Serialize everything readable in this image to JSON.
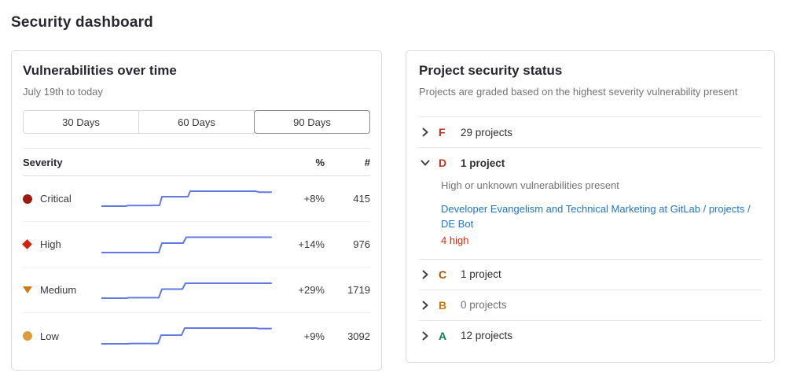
{
  "page": {
    "title": "Security dashboard"
  },
  "vulnerabilities_panel": {
    "title": "Vulnerabilities over time",
    "date_range": "July 19th to today",
    "range_buttons": [
      {
        "label": "30 Days",
        "selected": false
      },
      {
        "label": "60 Days",
        "selected": false
      },
      {
        "label": "90 Days",
        "selected": true
      }
    ],
    "sparkline_color": "#617ae2",
    "table": {
      "headers": {
        "severity": "Severity",
        "percent": "%",
        "count": "#"
      },
      "rows": [
        {
          "severity": "Critical",
          "icon": "critical-severity-icon",
          "icon_shape": "circle",
          "icon_color": "#9a1b10",
          "percent_change": "+8%",
          "count": "415",
          "sparkline": [
            [
              0,
              27
            ],
            [
              31,
              27
            ],
            [
              34,
              26.2
            ],
            [
              60,
              26.2
            ],
            [
              74,
              26
            ],
            [
              77,
              15
            ],
            [
              110,
              15
            ],
            [
              113,
              8
            ],
            [
              196,
              8
            ],
            [
              201,
              9.3
            ],
            [
              216,
              9.3
            ]
          ]
        },
        {
          "severity": "High",
          "icon": "high-severity-icon",
          "icon_shape": "diamond",
          "icon_color": "#d2230e",
          "percent_change": "+14%",
          "count": "976",
          "sparkline": [
            [
              0,
              28
            ],
            [
              73,
              28
            ],
            [
              77,
              16
            ],
            [
              104,
              16
            ],
            [
              108,
              8.5
            ],
            [
              216,
              8.5
            ]
          ]
        },
        {
          "severity": "Medium",
          "icon": "medium-severity-icon",
          "icon_shape": "triangle-down",
          "icon_color": "#ce7b16",
          "percent_change": "+29%",
          "count": "1719",
          "sparkline": [
            [
              0,
              28
            ],
            [
              32,
              28
            ],
            [
              35,
              27.4
            ],
            [
              73,
              27.4
            ],
            [
              77,
              16.5
            ],
            [
              103,
              16.5
            ],
            [
              107,
              9
            ],
            [
              216,
              9
            ]
          ]
        },
        {
          "severity": "Low",
          "icon": "low-severity-icon",
          "icon_shape": "circle",
          "icon_color": "#de9b3b",
          "percent_change": "+9%",
          "count": "3092",
          "sparkline": [
            [
              0,
              28
            ],
            [
              34,
              28
            ],
            [
              37,
              27.6
            ],
            [
              72,
              27.6
            ],
            [
              76,
              17
            ],
            [
              102,
              17
            ],
            [
              106,
              8
            ],
            [
              197,
              8
            ],
            [
              200,
              8.6
            ],
            [
              216,
              8.6
            ]
          ]
        }
      ]
    }
  },
  "project_status_panel": {
    "title": "Project security status",
    "subtitle": "Projects are graded based on the highest severity vulnerability present",
    "grades": [
      {
        "letter": "F",
        "letter_color": "#c0341d",
        "count_label": "29 projects",
        "expanded": false
      },
      {
        "letter": "D",
        "letter_color": "#c0341d",
        "count_label": "1 project",
        "expanded": true,
        "description": "High or unknown vulnerabilities present",
        "projects": [
          {
            "link": "Developer Evangelism and Technical Marketing at GitLab / projects / DE Bot",
            "vulns": "4 high",
            "vulns_color": "#dd2b0e"
          }
        ]
      },
      {
        "letter": "C",
        "letter_color": "#ab5600",
        "count_label": "1 project",
        "expanded": false
      },
      {
        "letter": "B",
        "letter_color": "#c17d10",
        "count_label": "0 projects",
        "expanded": false,
        "muted": true
      },
      {
        "letter": "A",
        "letter_color": "#108548",
        "count_label": "12 projects",
        "expanded": false
      }
    ]
  }
}
